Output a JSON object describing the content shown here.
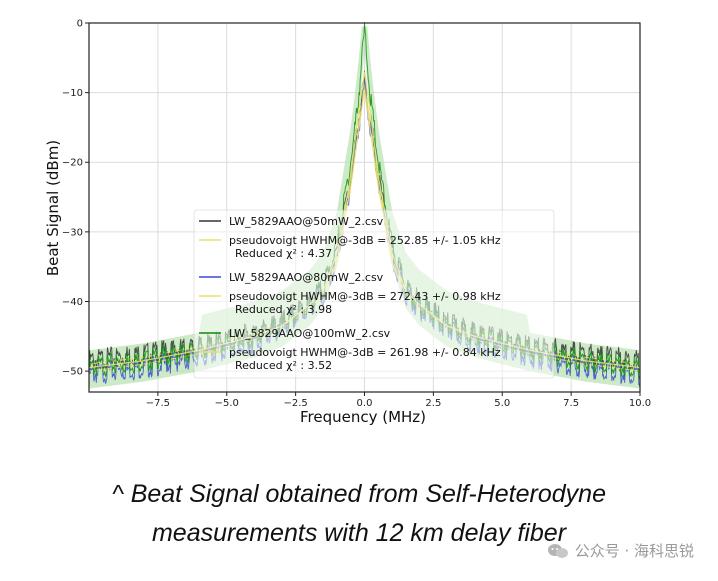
{
  "chart_data": {
    "type": "line",
    "title": "",
    "xlabel": "Frequency (MHz)",
    "ylabel": "Beat Signal (dBm)",
    "xlim": [
      -10.0,
      10.0
    ],
    "ylim": [
      -53,
      0
    ],
    "x_ticks": [
      -7.5,
      -5.0,
      -2.5,
      0.0,
      2.5,
      5.0,
      7.5,
      10.0
    ],
    "x_tick_labels": [
      "−7.5",
      "−5.0",
      "−2.5",
      "0.0",
      "2.5",
      "5.0",
      "7.5",
      "10.0"
    ],
    "y_ticks": [
      0,
      -10,
      -20,
      -30,
      -40,
      -50
    ],
    "y_tick_labels": [
      "0",
      "−10",
      "−20",
      "−30",
      "−40",
      "−50"
    ],
    "grid": true,
    "legend_position": "center",
    "series": [
      {
        "name": "LW_5829AAO@50mW_2.csv",
        "color": "#333333",
        "x": [
          -10,
          -8,
          -6,
          -4,
          -3,
          -2,
          -1.5,
          -1,
          -0.5,
          -0.25,
          0,
          0.25,
          0.5,
          1,
          1.5,
          2,
          3,
          4,
          6,
          8,
          10
        ],
        "y": [
          -48.5,
          -47.5,
          -46.5,
          -44.5,
          -43,
          -40,
          -38,
          -33,
          -22,
          -15,
          -8,
          -15,
          -22,
          -33,
          -38,
          -40,
          -43,
          -44.5,
          -46.5,
          -47.5,
          -48.5
        ]
      },
      {
        "name": "pseudovoigt HWHM@-3dB = 252.85 +/- 1.05 kHz",
        "fit_label": "Reduced χ² : 4.37",
        "color": "#e8e26a",
        "x": [
          -10,
          -8,
          -6,
          -4,
          -3,
          -2,
          -1.5,
          -1,
          -0.5,
          -0.25,
          0,
          0.25,
          0.5,
          1,
          1.5,
          2,
          3,
          4,
          6,
          8,
          10
        ],
        "y": [
          -49,
          -48,
          -46.5,
          -44.5,
          -43,
          -40.5,
          -38.5,
          -34,
          -23,
          -16,
          -8.5,
          -16,
          -23,
          -34,
          -38.5,
          -40.5,
          -43,
          -44.5,
          -46.5,
          -48,
          -49
        ]
      },
      {
        "name": "LW_5829AAO@80mW_2.csv",
        "color": "#3a4ad0",
        "x": [
          -10,
          -8,
          -6,
          -4,
          -3,
          -2,
          -1.5,
          -1,
          -0.5,
          -0.25,
          0,
          0.25,
          0.5,
          1,
          1.5,
          2,
          3,
          4,
          6,
          8,
          10
        ],
        "y": [
          -50.5,
          -49.5,
          -48,
          -46,
          -44,
          -41,
          -39,
          -34,
          -23,
          -16,
          -9,
          -16,
          -23,
          -34,
          -39,
          -41,
          -44,
          -46,
          -48,
          -49.5,
          -50.5
        ]
      },
      {
        "name": "pseudovoigt HWHM@-3dB = 272.43 +/- 0.98 kHz",
        "fit_label": "Reduced χ² : 3.98",
        "color": "#e8e26a",
        "x": [
          -10,
          -8,
          -6,
          -4,
          -3,
          -2,
          -1.5,
          -1,
          -0.5,
          -0.25,
          0,
          0.25,
          0.5,
          1,
          1.5,
          2,
          3,
          4,
          6,
          8,
          10
        ],
        "y": [
          -50,
          -49,
          -47.5,
          -45.5,
          -43.5,
          -41,
          -39,
          -34.5,
          -23.5,
          -16.5,
          -9.5,
          -16.5,
          -23.5,
          -34.5,
          -39,
          -41,
          -43.5,
          -45.5,
          -47.5,
          -49,
          -50
        ]
      },
      {
        "name": "LW_5829AAO@100mW_2.csv",
        "color": "#0e8a0e",
        "x": [
          -10,
          -8,
          -6,
          -4,
          -3,
          -2,
          -1.5,
          -1,
          -0.5,
          -0.25,
          0,
          0.25,
          0.5,
          1,
          1.5,
          2,
          3,
          4,
          6,
          8,
          10
        ],
        "y": [
          -49.5,
          -48.5,
          -47,
          -45,
          -43.5,
          -40.5,
          -38,
          -32,
          -20,
          -12,
          -1,
          -12,
          -20,
          -32,
          -38,
          -40.5,
          -43.5,
          -45,
          -47,
          -48.5,
          -49.5
        ]
      },
      {
        "name": "pseudovoigt HWHM@-3dB = 261.98 +/- 0.84 kHz",
        "fit_label": "Reduced χ² : 3.52",
        "color": "#e8e26a",
        "x": [
          -10,
          -8,
          -6,
          -4,
          -3,
          -2,
          -1.5,
          -1,
          -0.5,
          -0.25,
          0,
          0.25,
          0.5,
          1,
          1.5,
          2,
          3,
          4,
          6,
          8,
          10
        ],
        "y": [
          -49.5,
          -48.5,
          -47,
          -45,
          -43.5,
          -40.5,
          -38.5,
          -33,
          -22,
          -14,
          -7,
          -14,
          -22,
          -33,
          -38.5,
          -40.5,
          -43.5,
          -45,
          -47,
          -48.5,
          -49.5
        ]
      }
    ]
  },
  "caption": {
    "line1": "^ Beat Signal obtained from Self-Heterodyne",
    "line2": "measurements with 12 km delay fiber"
  },
  "watermark": {
    "text": "公众号 · 海科思锐",
    "icon": "wechat-icon"
  }
}
